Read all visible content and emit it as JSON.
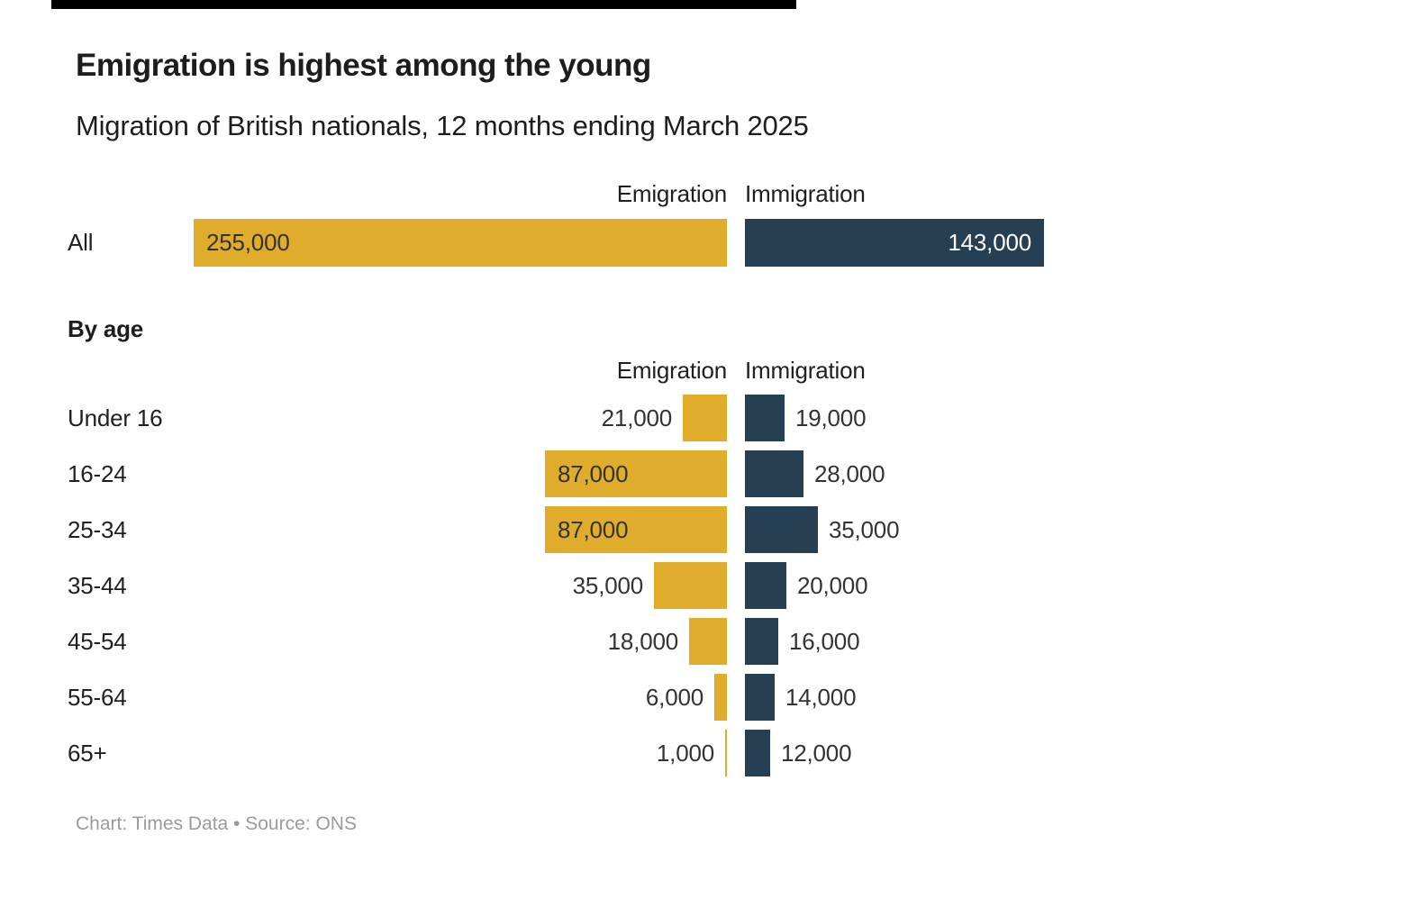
{
  "header": {
    "title": "Emigration is highest among the young",
    "subtitle": "Migration of British nationals, 12 months ending March 2025"
  },
  "columns": {
    "emigration": "Emigration",
    "immigration": "Immigration"
  },
  "sections": {
    "all_label": "All",
    "by_age_label": "By age"
  },
  "footer": {
    "credit": "Chart: Times Data • Source: ONS"
  },
  "colors": {
    "emigration_gold": "#DFAC2B",
    "immigration_navy": "#263F52",
    "label_dark": "#333333",
    "label_light": "#FFFFFF",
    "footer_gray": "#9B9B9B",
    "top_bar_black": "#000000"
  },
  "chart_data": {
    "type": "bar",
    "title": "Emigration is highest among the young",
    "subtitle": "Migration of British nationals, 12 months ending March 2025",
    "legend": [
      "Emigration",
      "Immigration"
    ],
    "legend_position": "column-headers",
    "grid": false,
    "xlim": [
      0,
      260000
    ],
    "all": {
      "category": "All",
      "emigration": 255000,
      "immigration": 143000,
      "emigration_label": "255,000",
      "immigration_label": "143,000"
    },
    "by_age": {
      "section_title": "By age",
      "categories": [
        "Under 16",
        "16-24",
        "25-34",
        "35-44",
        "45-54",
        "55-64",
        "65+"
      ],
      "series": [
        {
          "name": "Emigration",
          "values": [
            21000,
            87000,
            87000,
            35000,
            18000,
            6000,
            1000
          ],
          "labels": [
            "21,000",
            "87,000",
            "87,000",
            "35,000",
            "18,000",
            "6,000",
            "1,000"
          ]
        },
        {
          "name": "Immigration",
          "values": [
            19000,
            28000,
            35000,
            20000,
            16000,
            14000,
            12000
          ],
          "labels": [
            "19,000",
            "28,000",
            "35,000",
            "20,000",
            "16,000",
            "14,000",
            "12,000"
          ]
        }
      ]
    },
    "source": "Chart: Times Data • Source: ONS"
  }
}
